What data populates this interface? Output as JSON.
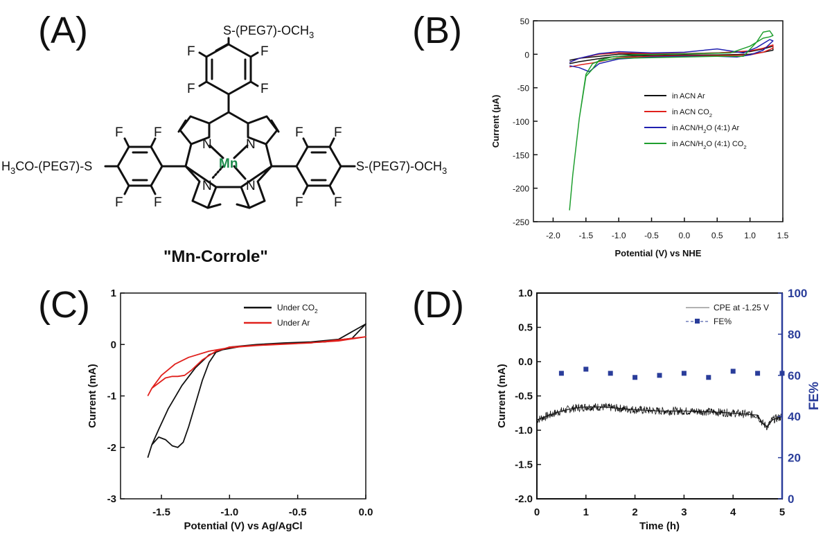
{
  "panels": {
    "A": {
      "letter": "(A)",
      "caption": "\"Mn-Corrole\"",
      "metal": "Mn",
      "nitrogen": "N",
      "fluorine": "F",
      "substituent_right": "S-(PEG7)-OCH",
      "substituent_top": "S-(PEG7)-OCH",
      "substituent_left": "H",
      "substituent_left_rest": "CO-(PEG7)-S",
      "subscript_3": "3"
    },
    "B": {
      "letter": "(B)"
    },
    "C": {
      "letter": "(C)"
    },
    "D": {
      "letter": "(D)"
    }
  },
  "chart_data": [
    {
      "panel": "B",
      "type": "line",
      "xlabel": "Potential (V) vs NHE",
      "ylabel": "Current (μA)",
      "xlim": [
        -2.3,
        1.5
      ],
      "ylim": [
        -250,
        50
      ],
      "xticks": [
        "-2.0",
        "-1.5",
        "-1.0",
        "-0.5",
        "0.0",
        "0.5",
        "1.0",
        "1.5"
      ],
      "yticks": [
        "50",
        "0",
        "-50",
        "-100",
        "-150",
        "-200",
        "-250"
      ],
      "xtick_values": [
        -2.0,
        -1.5,
        -1.0,
        -0.5,
        0.0,
        0.5,
        1.0,
        1.5
      ],
      "ytick_values": [
        50,
        0,
        -50,
        -100,
        -150,
        -200,
        -250
      ],
      "legend_position": "middle-right",
      "series": [
        {
          "name": "in ACN Ar",
          "color": "#111111",
          "x": [
            -1.75,
            -1.6,
            -1.4,
            -1.2,
            -1.0,
            -0.6,
            0,
            0.5,
            1.0,
            1.2,
            1.35,
            1.35,
            1.2,
            1.0,
            0.5,
            0,
            -0.5,
            -1.0,
            -1.3,
            -1.6,
            -1.75
          ],
          "y": [
            -14,
            -11,
            -8,
            -5,
            -3,
            -2,
            -1,
            -1,
            0,
            3,
            6,
            12,
            8,
            4,
            2,
            1,
            0,
            0,
            -3,
            -6,
            -9
          ]
        },
        {
          "name": "in ACN CO2",
          "color": "#e0201c",
          "x": [
            -1.75,
            -1.6,
            -1.4,
            -1.2,
            -1.0,
            -0.5,
            0,
            0.5,
            1.0,
            1.2,
            1.35,
            1.35,
            1.2,
            1.0,
            0.5,
            0,
            -0.5,
            -1.0,
            -1.3,
            -1.6,
            -1.75
          ],
          "y": [
            -19,
            -16,
            -13,
            -9,
            -5,
            -3,
            -2,
            -2,
            -1,
            3,
            9,
            14,
            9,
            5,
            2,
            1,
            1,
            2,
            0,
            -6,
            -12
          ]
        },
        {
          "name": "in ACN/H2O (4:1) Ar",
          "color": "#2020b0",
          "x": [
            -1.75,
            -1.6,
            -1.45,
            -1.3,
            -1.0,
            -0.5,
            0,
            0.5,
            0.8,
            1.0,
            1.2,
            1.35,
            1.3,
            1.1,
            0.9,
            0.5,
            0,
            -0.5,
            -1.0,
            -1.3,
            -1.6,
            -1.75
          ],
          "y": [
            -17,
            -20,
            -26,
            -14,
            -7,
            -4,
            -3,
            -3,
            -4,
            -1,
            6,
            20,
            22,
            10,
            2,
            8,
            3,
            2,
            4,
            1,
            -6,
            -12
          ]
        },
        {
          "name": "in ACN/H2O (4:1) CO2",
          "color": "#1e9e2e",
          "x": [
            -1.75,
            -1.7,
            -1.6,
            -1.5,
            -1.4,
            -1.3,
            -1.0,
            -0.5,
            0,
            0.5,
            0.9,
            1.1,
            1.2,
            1.3,
            1.35,
            1.3,
            1.2,
            1.0,
            0.7,
            0.2,
            -0.3,
            -0.8,
            -1.1,
            -1.3,
            -1.4,
            -1.5,
            -1.6,
            -1.7
          ],
          "y": [
            -233,
            -180,
            -95,
            -30,
            -14,
            -10,
            -6,
            -5,
            -4,
            -3,
            -3,
            18,
            33,
            35,
            28,
            26,
            24,
            12,
            2,
            1,
            0,
            -1,
            -4,
            -9,
            -22,
            -33,
            -95,
            -180
          ]
        }
      ]
    },
    {
      "panel": "C",
      "type": "line",
      "xlabel": "Potential (V) vs Ag/AgCl",
      "ylabel": "Current (mA)",
      "xlim": [
        -1.8,
        0.0
      ],
      "ylim": [
        -3,
        1
      ],
      "xticks": [
        "-1.5",
        "-1.0",
        "-0.5",
        "0.0"
      ],
      "yticks": [
        "1",
        "0",
        "-1",
        "-2",
        "-3"
      ],
      "xtick_values": [
        -1.5,
        -1.0,
        -0.5,
        0.0
      ],
      "ytick_values": [
        1,
        0,
        -1,
        -2,
        -3
      ],
      "legend_position": "top-right",
      "series": [
        {
          "name": "Under CO2",
          "color": "#111111",
          "x": [
            -1.6,
            -1.57,
            -1.52,
            -1.47,
            -1.42,
            -1.38,
            -1.34,
            -1.3,
            -1.25,
            -1.2,
            -1.15,
            -1.1,
            -1.0,
            -0.8,
            -0.6,
            -0.4,
            -0.2,
            0.0,
            -0.1,
            -0.3,
            -0.6,
            -0.9,
            -1.05,
            -1.15,
            -1.25,
            -1.35,
            -1.45,
            -1.52,
            -1.57,
            -1.6
          ],
          "y": [
            -2.2,
            -1.95,
            -1.8,
            -1.85,
            -1.97,
            -2.0,
            -1.9,
            -1.6,
            -1.15,
            -0.7,
            -0.35,
            -0.15,
            -0.05,
            0.0,
            0.03,
            0.05,
            0.1,
            0.4,
            0.12,
            0.05,
            0.02,
            -0.03,
            -0.1,
            -0.2,
            -0.45,
            -0.8,
            -1.25,
            -1.65,
            -1.95,
            -2.2
          ]
        },
        {
          "name": "Under Ar",
          "color": "#e0201c",
          "x": [
            -1.6,
            -1.57,
            -1.52,
            -1.47,
            -1.42,
            -1.38,
            -1.33,
            -1.28,
            -1.2,
            -1.1,
            -1.0,
            -0.7,
            -0.4,
            0.0,
            -0.2,
            -0.5,
            -0.8,
            -1.0,
            -1.15,
            -1.3,
            -1.4,
            -1.5,
            -1.57,
            -1.6
          ],
          "y": [
            -1.0,
            -0.85,
            -0.75,
            -0.65,
            -0.62,
            -0.62,
            -0.6,
            -0.5,
            -0.3,
            -0.13,
            -0.05,
            0.0,
            0.03,
            0.15,
            0.07,
            0.02,
            -0.02,
            -0.06,
            -0.13,
            -0.25,
            -0.38,
            -0.6,
            -0.85,
            -1.0
          ]
        }
      ]
    },
    {
      "panel": "D",
      "type": "line",
      "xlabel": "Time (h)",
      "ylabel": "Current (mA)",
      "y2label": "FE%",
      "xlim": [
        0,
        5
      ],
      "ylim": [
        -2.0,
        1.0
      ],
      "y2lim": [
        0,
        100
      ],
      "xticks": [
        "0",
        "1",
        "2",
        "3",
        "4",
        "5"
      ],
      "yticks": [
        "1.0",
        "0.5",
        "0.0",
        "-0.5",
        "-1.0",
        "-1.5",
        "-2.0"
      ],
      "y2ticks": [
        "100",
        "80",
        "60",
        "40",
        "20",
        "0"
      ],
      "xtick_values": [
        0,
        1,
        2,
        3,
        4,
        5
      ],
      "ytick_values": [
        1.0,
        0.5,
        0.0,
        -0.5,
        -1.0,
        -1.5,
        -2.0
      ],
      "y2tick_values": [
        100,
        80,
        60,
        40,
        20,
        0
      ],
      "legend_position": "top-right",
      "series": [
        {
          "name": "CPE at -1.25 V",
          "color": "#111111",
          "axis": "left",
          "x": [
            0,
            0.25,
            0.5,
            0.75,
            1.0,
            1.25,
            1.5,
            2.0,
            2.5,
            3.0,
            3.5,
            4.0,
            4.5,
            4.6,
            4.7,
            4.8,
            5.0
          ],
          "y": [
            -0.85,
            -0.78,
            -0.72,
            -0.68,
            -0.66,
            -0.66,
            -0.67,
            -0.7,
            -0.72,
            -0.72,
            -0.73,
            -0.75,
            -0.78,
            -0.9,
            -0.95,
            -0.85,
            -0.8
          ]
        },
        {
          "name": "FE%",
          "color": "#2a3d9a",
          "axis": "right",
          "marker": "square",
          "x": [
            0.5,
            1.0,
            1.5,
            2.0,
            2.5,
            3.0,
            3.5,
            4.0,
            4.5,
            5.0
          ],
          "y": [
            61,
            63,
            61,
            59,
            60,
            61,
            59,
            62,
            61,
            61
          ]
        }
      ]
    }
  ]
}
